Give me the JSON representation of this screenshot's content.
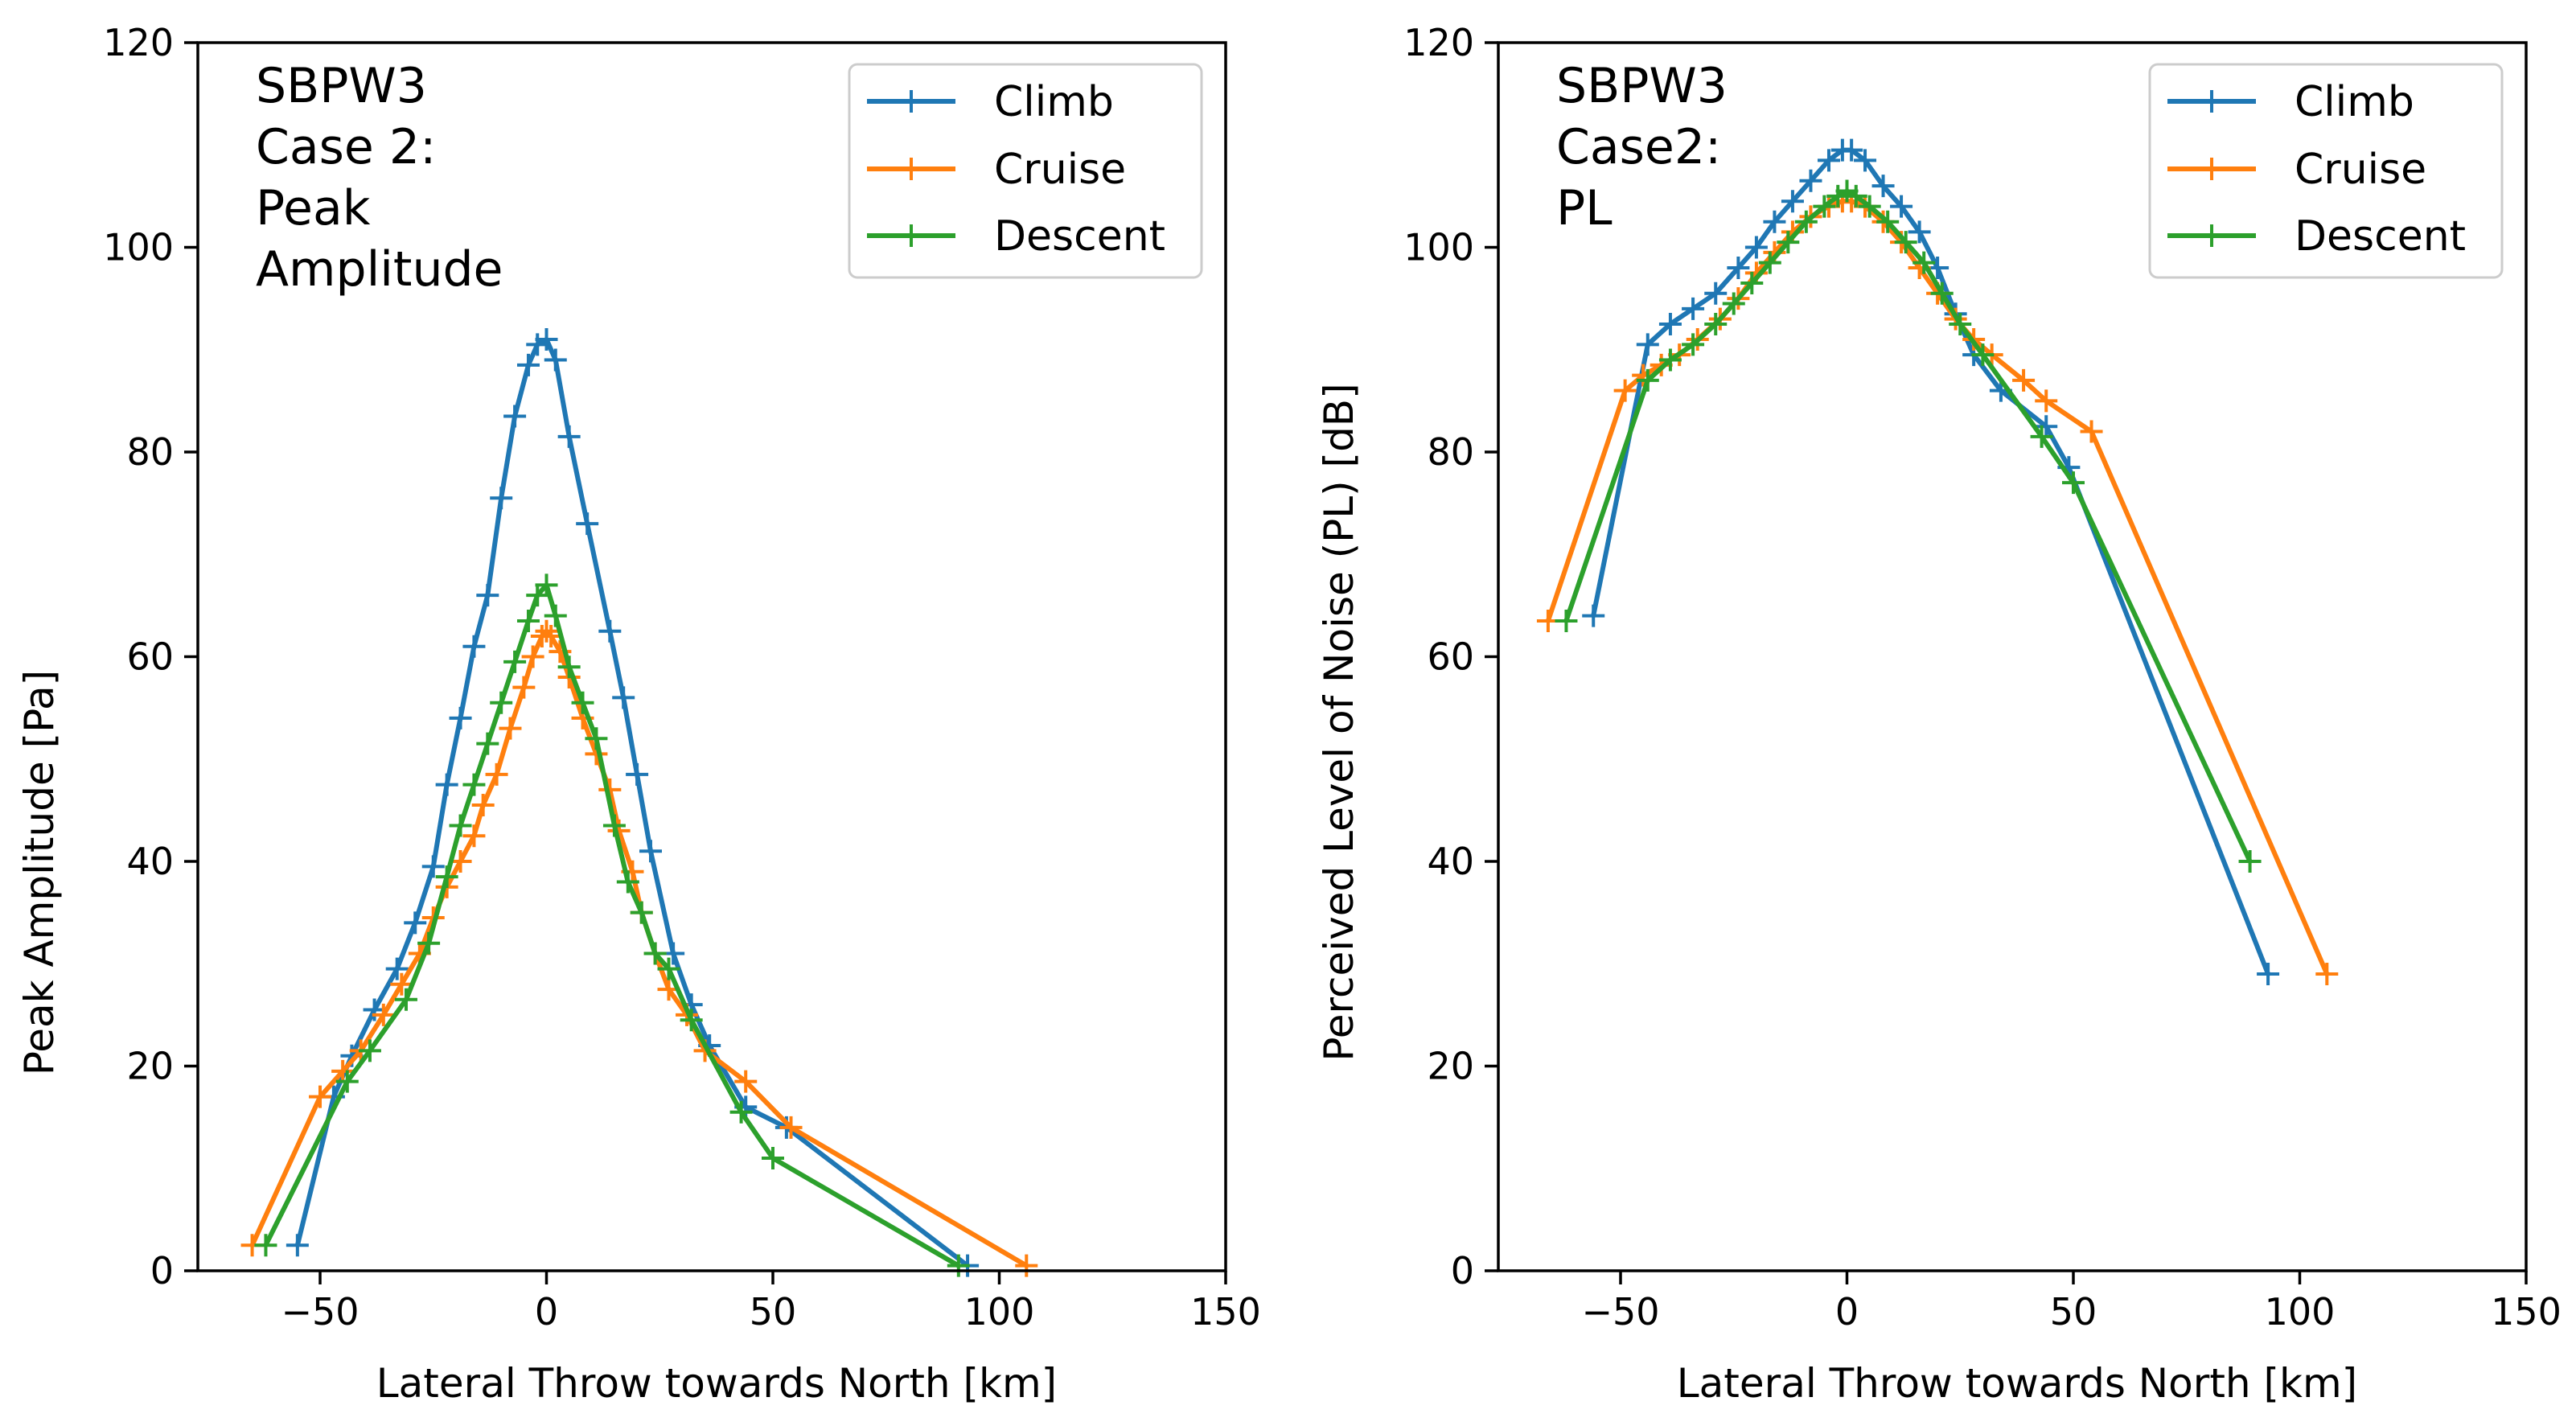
{
  "chart_data": [
    {
      "type": "line",
      "annotation": [
        "SBPW3",
        "Case 2:",
        "Peak",
        "Amplitude"
      ],
      "xlabel": "Lateral Throw towards North [km]",
      "ylabel": "Peak Amplitude [Pa]",
      "xlim": [
        -77,
        150
      ],
      "ylim": [
        0,
        120
      ],
      "xticks": [
        -50,
        0,
        50,
        100,
        150
      ],
      "xtick_labels": [
        "−50",
        "0",
        "50",
        "100",
        "150"
      ],
      "yticks": [
        0,
        20,
        40,
        60,
        80,
        100,
        120
      ],
      "ytick_labels": [
        "0",
        "20",
        "40",
        "60",
        "80",
        "100",
        "120"
      ],
      "legend_position": "top-right",
      "series": [
        {
          "name": "Climb",
          "color": "#1f77b4",
          "x": [
            -55,
            -47,
            -43,
            -38,
            -33,
            -29,
            -25,
            -22,
            -19,
            -16,
            -13,
            -10,
            -7,
            -4,
            -2,
            0,
            2,
            5,
            9,
            14,
            17,
            20,
            23,
            28,
            32,
            36,
            44,
            53,
            93
          ],
          "y": [
            2.5,
            17,
            21,
            25.5,
            29.5,
            34,
            39.5,
            47.5,
            54,
            61,
            66,
            75.5,
            83.5,
            88.5,
            90.5,
            91,
            89,
            81.5,
            73,
            62.5,
            56,
            48.5,
            41,
            31,
            26,
            22,
            16,
            14,
            0.5
          ]
        },
        {
          "name": "Cruise",
          "color": "#ff7f0e",
          "x": [
            -65,
            -50,
            -45,
            -41,
            -36,
            -32,
            -28,
            -25,
            -22,
            -19,
            -16,
            -14,
            -11,
            -8,
            -5,
            -3,
            -1,
            0,
            1,
            3,
            5,
            8,
            11,
            14,
            16,
            19,
            21,
            24,
            27,
            31,
            35,
            44,
            54,
            106
          ],
          "y": [
            2.5,
            17,
            19.5,
            21.5,
            25,
            28,
            31,
            34.5,
            37.5,
            40,
            42.5,
            45.5,
            48.5,
            53,
            57,
            60,
            62,
            62.5,
            62,
            60.5,
            58,
            54,
            50.5,
            47,
            43,
            39,
            35,
            31,
            27.5,
            25,
            21.5,
            18.5,
            14,
            0.5
          ]
        },
        {
          "name": "Descent",
          "color": "#2ca02c",
          "x": [
            -62,
            -44,
            -39,
            -31,
            -26,
            -22,
            -19,
            -16,
            -13,
            -10,
            -7,
            -4,
            -2,
            0,
            2,
            5,
            8,
            11,
            15,
            18,
            21,
            24,
            27,
            32,
            43,
            50,
            91
          ],
          "y": [
            2.5,
            18.5,
            21.5,
            26.5,
            32,
            38.5,
            43.5,
            47.5,
            51.5,
            55.5,
            59.5,
            63.5,
            66,
            67,
            64,
            59,
            55.5,
            52,
            43.5,
            38,
            35,
            31,
            29.5,
            24.5,
            15.5,
            11,
            0.5
          ]
        }
      ]
    },
    {
      "type": "line",
      "annotation": [
        "SBPW3",
        "Case2:",
        "PL"
      ],
      "xlabel": "Lateral Throw towards North [km]",
      "ylabel": "Perceived Level of Noise (PL) [dB]",
      "xlim": [
        -77,
        150
      ],
      "ylim": [
        0,
        120
      ],
      "xticks": [
        -50,
        0,
        50,
        100,
        150
      ],
      "xtick_labels": [
        "−50",
        "0",
        "50",
        "100",
        "150"
      ],
      "yticks": [
        0,
        20,
        40,
        60,
        80,
        100,
        120
      ],
      "ytick_labels": [
        "0",
        "20",
        "40",
        "60",
        "80",
        "100",
        "120"
      ],
      "legend_position": "top-right",
      "series": [
        {
          "name": "Climb",
          "color": "#1f77b4",
          "x": [
            -56,
            -44,
            -39,
            -34,
            -29,
            -24,
            -20,
            -16,
            -12,
            -8,
            -4,
            -1,
            1,
            4,
            8,
            12,
            16,
            20,
            24,
            28,
            34,
            44,
            49,
            93
          ],
          "y": [
            64,
            90.5,
            92.5,
            94,
            95.5,
            98,
            100,
            102.5,
            104.5,
            106.5,
            108.5,
            109.5,
            109.5,
            108.5,
            106,
            104,
            101.5,
            98,
            93.5,
            89.5,
            86,
            82.5,
            78.5,
            29
          ]
        },
        {
          "name": "Cruise",
          "color": "#ff7f0e",
          "x": [
            -66,
            -49,
            -45,
            -41,
            -37,
            -33,
            -28,
            -24,
            -20,
            -16,
            -12,
            -8,
            -4,
            -1,
            1,
            4,
            8,
            12,
            16,
            20,
            24,
            28,
            32,
            39,
            44,
            54,
            106
          ],
          "y": [
            63.5,
            86,
            87.5,
            88.5,
            89.5,
            91,
            93,
            95,
            97.5,
            99.5,
            101.5,
            103,
            104,
            104.5,
            104.5,
            104,
            102.5,
            100.5,
            98,
            95.5,
            93,
            91,
            89.5,
            87,
            85,
            82,
            29
          ]
        },
        {
          "name": "Descent",
          "color": "#2ca02c",
          "x": [
            -62,
            -44,
            -39,
            -34,
            -29,
            -25,
            -21,
            -17,
            -13,
            -9,
            -5,
            -2,
            0,
            2,
            5,
            9,
            13,
            17,
            21,
            25,
            30,
            43,
            50,
            89
          ],
          "y": [
            63.5,
            87,
            89,
            90.5,
            92.5,
            94.5,
            96.5,
            98.5,
            100.5,
            102.5,
            104,
            105,
            105.5,
            105,
            104,
            102.5,
            100.5,
            98.5,
            95.5,
            92.5,
            89.5,
            81.5,
            77,
            40
          ]
        }
      ]
    }
  ]
}
